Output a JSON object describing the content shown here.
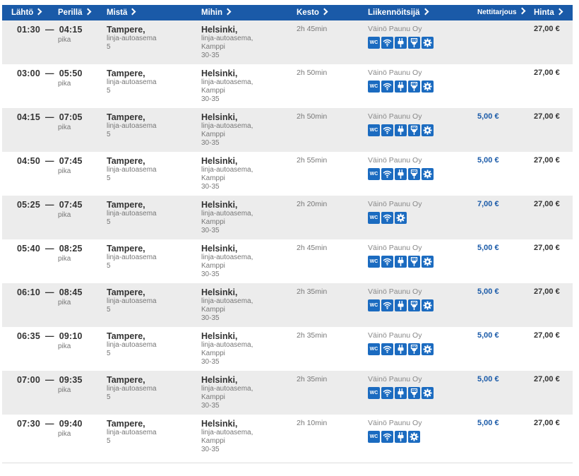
{
  "header": {
    "depart": "Lähtö",
    "arrive": "Perillä",
    "from": "Mistä",
    "to": "Mihin",
    "duration": "Kesto",
    "operator": "Liikennöitsijä",
    "web_offer": "Nettitarjous",
    "price": "Hinta"
  },
  "colors": {
    "header_bg": "#1a5aa8",
    "icon_bg": "#1b6bc0",
    "row_alt": "#ececec"
  },
  "rows": [
    {
      "depart": "01:30",
      "arrive": "04:15",
      "type": "pika",
      "from_city": "Tampere,",
      "from_stop": "linja-autoasema",
      "from_platform": "5",
      "to_city": "Helsinki,",
      "to_stop": "linja-autoasema,",
      "to_area": "Kamppi",
      "to_platform": "30-35",
      "duration": "2h 45min",
      "operator": "Väinö Paunu Oy",
      "amenities": [
        "wc",
        "wifi",
        "plug",
        "usb",
        "settings"
      ],
      "web_price": "",
      "price": "27,00 €"
    },
    {
      "depart": "03:00",
      "arrive": "05:50",
      "type": "pika",
      "from_city": "Tampere,",
      "from_stop": "linja-autoasema",
      "from_platform": "5",
      "to_city": "Helsinki,",
      "to_stop": "linja-autoasema,",
      "to_area": "Kamppi",
      "to_platform": "30-35",
      "duration": "2h 50min",
      "operator": "Väinö Paunu Oy",
      "amenities": [
        "wc",
        "wifi",
        "plug",
        "usb",
        "settings"
      ],
      "web_price": "",
      "price": "27,00 €"
    },
    {
      "depart": "04:15",
      "arrive": "07:05",
      "type": "pika",
      "from_city": "Tampere,",
      "from_stop": "linja-autoasema",
      "from_platform": "5",
      "to_city": "Helsinki,",
      "to_stop": "linja-autoasema,",
      "to_area": "Kamppi",
      "to_platform": "30-35",
      "duration": "2h 50min",
      "operator": "Väinö Paunu Oy",
      "amenities": [
        "wc",
        "wifi",
        "plug",
        "usb",
        "settings"
      ],
      "web_price": "5,00 €",
      "price": "27,00 €"
    },
    {
      "depart": "04:50",
      "arrive": "07:45",
      "type": "pika",
      "from_city": "Tampere,",
      "from_stop": "linja-autoasema",
      "from_platform": "5",
      "to_city": "Helsinki,",
      "to_stop": "linja-autoasema,",
      "to_area": "Kamppi",
      "to_platform": "30-35",
      "duration": "2h 55min",
      "operator": "Väinö Paunu Oy",
      "amenities": [
        "wc",
        "wifi",
        "plug",
        "usb",
        "settings"
      ],
      "web_price": "5,00 €",
      "price": "27,00 €"
    },
    {
      "depart": "05:25",
      "arrive": "07:45",
      "type": "pika",
      "from_city": "Tampere,",
      "from_stop": "linja-autoasema",
      "from_platform": "5",
      "to_city": "Helsinki,",
      "to_stop": "linja-autoasema,",
      "to_area": "Kamppi",
      "to_platform": "30-35",
      "duration": "2h 20min",
      "operator": "Väinö Paunu Oy",
      "amenities": [
        "wc",
        "wifi",
        "settings"
      ],
      "web_price": "7,00 €",
      "price": "27,00 €"
    },
    {
      "depart": "05:40",
      "arrive": "08:25",
      "type": "pika",
      "from_city": "Tampere,",
      "from_stop": "linja-autoasema",
      "from_platform": "5",
      "to_city": "Helsinki,",
      "to_stop": "linja-autoasema,",
      "to_area": "Kamppi",
      "to_platform": "30-35",
      "duration": "2h 45min",
      "operator": "Väinö Paunu Oy",
      "amenities": [
        "wc",
        "wifi",
        "plug",
        "usb",
        "settings"
      ],
      "web_price": "5,00 €",
      "price": "27,00 €"
    },
    {
      "depart": "06:10",
      "arrive": "08:45",
      "type": "pika",
      "from_city": "Tampere,",
      "from_stop": "linja-autoasema",
      "from_platform": "5",
      "to_city": "Helsinki,",
      "to_stop": "linja-autoasema,",
      "to_area": "Kamppi",
      "to_platform": "30-35",
      "duration": "2h 35min",
      "operator": "Väinö Paunu Oy",
      "amenities": [
        "wc",
        "wifi",
        "plug",
        "usb",
        "settings"
      ],
      "web_price": "5,00 €",
      "price": "27,00 €"
    },
    {
      "depart": "06:35",
      "arrive": "09:10",
      "type": "pika",
      "from_city": "Tampere,",
      "from_stop": "linja-autoasema",
      "from_platform": "5",
      "to_city": "Helsinki,",
      "to_stop": "linja-autoasema,",
      "to_area": "Kamppi",
      "to_platform": "30-35",
      "duration": "2h 35min",
      "operator": "Väinö Paunu Oy",
      "amenities": [
        "wc",
        "wifi",
        "plug",
        "usb",
        "settings"
      ],
      "web_price": "5,00 €",
      "price": "27,00 €"
    },
    {
      "depart": "07:00",
      "arrive": "09:35",
      "type": "pika",
      "from_city": "Tampere,",
      "from_stop": "linja-autoasema",
      "from_platform": "5",
      "to_city": "Helsinki,",
      "to_stop": "linja-autoasema,",
      "to_area": "Kamppi",
      "to_platform": "30-35",
      "duration": "2h 35min",
      "operator": "Väinö Paunu Oy",
      "amenities": [
        "wc",
        "wifi",
        "plug",
        "usb",
        "settings"
      ],
      "web_price": "5,00 €",
      "price": "27,00 €"
    },
    {
      "depart": "07:30",
      "arrive": "09:40",
      "type": "pika",
      "from_city": "Tampere,",
      "from_stop": "linja-autoasema",
      "from_platform": "5",
      "to_city": "Helsinki,",
      "to_stop": "linja-autoasema,",
      "to_area": "Kamppi",
      "to_platform": "30-35",
      "duration": "2h 10min",
      "operator": "Väinö Paunu Oy",
      "amenities": [
        "wc",
        "wifi",
        "plug",
        "settings"
      ],
      "web_price": "5,00 €",
      "price": "27,00 €"
    }
  ]
}
